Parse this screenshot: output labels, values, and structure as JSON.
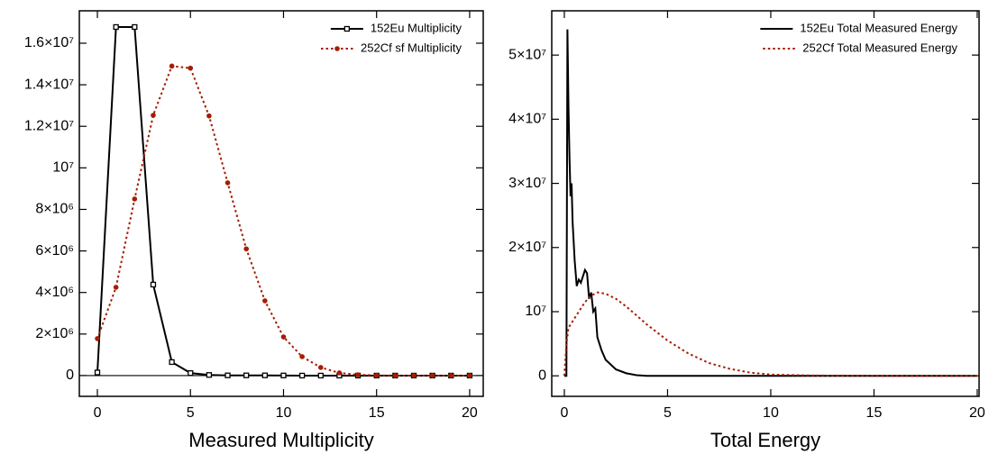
{
  "chart_data": [
    {
      "type": "line",
      "x_label": "Measured Multiplicity",
      "xlim": [
        -0.97,
        20.73
      ],
      "ylim": [
        -1000000,
        17560000
      ],
      "xticks": [
        0,
        5,
        10,
        15,
        20
      ],
      "yticks": [
        0,
        {
          "value": 2000000,
          "label": "2×10⁶"
        },
        {
          "value": 4000000,
          "label": "4×10⁶"
        },
        {
          "value": 6000000,
          "label": "6×10⁶"
        },
        {
          "value": 8000000,
          "label": "8×10⁶"
        },
        {
          "value": 10000000,
          "label": "10⁷"
        },
        {
          "value": 12000000,
          "label": "1.2×10⁷"
        },
        {
          "value": 14000000,
          "label": "1.4×10⁷"
        },
        {
          "value": 16000000,
          "label": "1.6×10⁷"
        }
      ],
      "legend": "upper right",
      "zero_line": true,
      "series": [
        {
          "name": "152Eu Multiplicity",
          "color": "#000000",
          "line_style": "solid",
          "marker": "square",
          "x": [
            0,
            1,
            2,
            3,
            4,
            5,
            6,
            7,
            8,
            9,
            10,
            11,
            12,
            13,
            14,
            15,
            16,
            17,
            18,
            19,
            20
          ],
          "values": [
            150000,
            16780000,
            16780000,
            4380000,
            650000,
            120000,
            30000,
            10000,
            10000,
            10000,
            5000,
            0,
            0,
            0,
            0,
            0,
            0,
            0,
            0,
            0,
            0
          ]
        },
        {
          "name": "252Cf sf Multiplicity",
          "color": "#a61c00",
          "line_style": "dotted",
          "marker": "circle",
          "x": [
            0,
            1,
            2,
            3,
            4,
            5,
            6,
            7,
            8,
            9,
            10,
            11,
            12,
            13,
            14,
            15,
            16,
            17,
            18,
            19,
            20
          ],
          "values": [
            1780000,
            4250000,
            8500000,
            12530000,
            14900000,
            14800000,
            12500000,
            9280000,
            6100000,
            3600000,
            1860000,
            910000,
            390000,
            130000,
            40000,
            10000,
            0,
            0,
            0,
            0,
            0
          ]
        }
      ]
    },
    {
      "type": "line",
      "x_label": "Total Energy",
      "xlim": [
        -0.61,
        20.09
      ],
      "ylim": [
        -3200000,
        56900000
      ],
      "xticks": [
        0,
        5,
        10,
        15,
        20
      ],
      "yticks": [
        0,
        {
          "value": 10000000,
          "label": "10⁷"
        },
        {
          "value": 20000000,
          "label": "2×10⁷"
        },
        {
          "value": 30000000,
          "label": "3×10⁷"
        },
        {
          "value": 40000000,
          "label": "4×10⁷"
        },
        {
          "value": 50000000,
          "label": "5×10⁷"
        }
      ],
      "legend": "upper right",
      "zero_line": false,
      "series": [
        {
          "name": "152Eu Total Measured Energy",
          "color": "#000000",
          "line_style": "solid",
          "marker": "none",
          "x": [
            0,
            0.1,
            0.15,
            0.2,
            0.25,
            0.3,
            0.35,
            0.4,
            0.5,
            0.6,
            0.7,
            0.8,
            0.9,
            1.0,
            1.1,
            1.2,
            1.3,
            1.4,
            1.5,
            1.6,
            1.8,
            2.0,
            2.5,
            3,
            3.5,
            4,
            5,
            6,
            8,
            10,
            15,
            20
          ],
          "values": [
            0,
            0,
            54000000,
            42000000,
            34000000,
            28000000,
            30000000,
            24000000,
            18000000,
            14000000,
            15000000,
            14500000,
            15500000,
            16500000,
            16000000,
            12000000,
            13000000,
            10000000,
            10500000,
            6000000,
            4000000,
            2500000,
            1000000,
            400000,
            100000,
            0,
            0,
            0,
            0,
            0,
            0,
            0
          ]
        },
        {
          "name": "252Cf Total Measured Energy",
          "color": "#a61c00",
          "line_style": "dotted",
          "marker": "none",
          "x": [
            0,
            0.1,
            0.2,
            0.4,
            0.6,
            0.8,
            1.0,
            1.3,
            1.6,
            2.0,
            2.5,
            3,
            4,
            5,
            6,
            7,
            8,
            9,
            10,
            12,
            15,
            20
          ],
          "values": [
            0,
            5000000,
            7500000,
            8500000,
            9500000,
            10500000,
            11500000,
            12500000,
            13000000,
            12800000,
            12000000,
            10800000,
            8000000,
            5500000,
            3500000,
            2000000,
            1100000,
            500000,
            200000,
            50000,
            0,
            0
          ]
        }
      ]
    }
  ]
}
